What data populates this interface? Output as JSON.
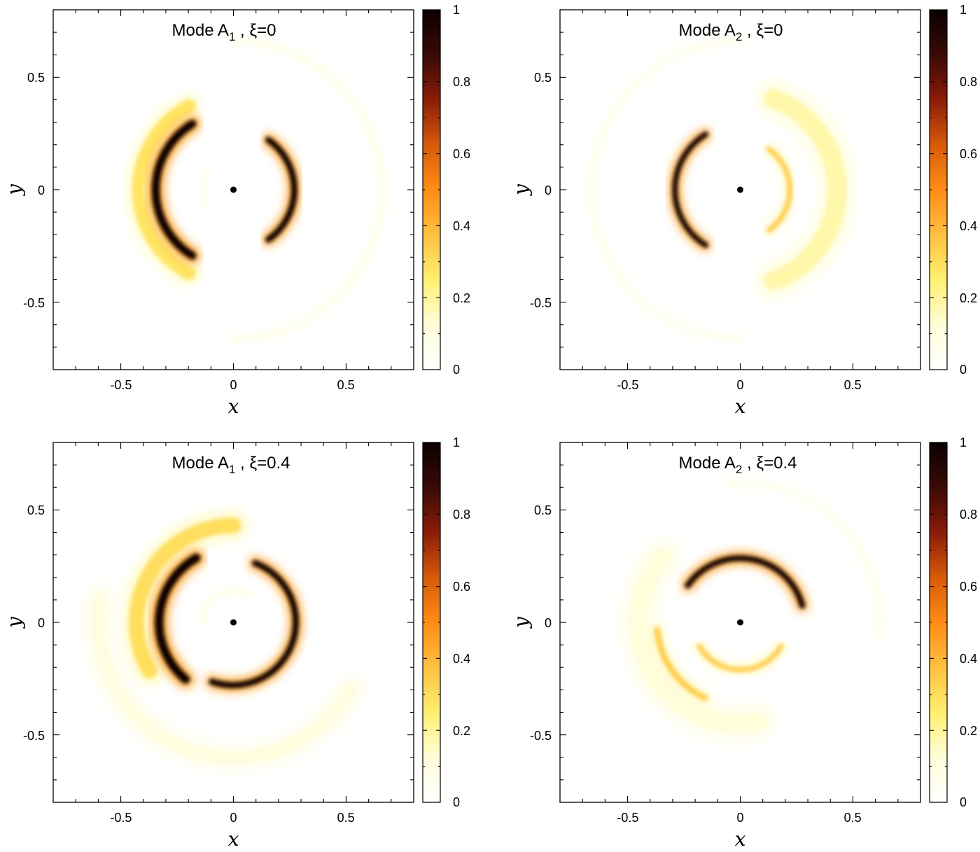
{
  "colormap": {
    "name": "afmhot-reversed",
    "stops": [
      "#ffffff",
      "#fffdd8",
      "#fff070",
      "#ffc040",
      "#ff8c15",
      "#d85a0a",
      "#8a1c08",
      "#3a0a06",
      "#0a0000"
    ],
    "ticks": [
      "0",
      "0.2",
      "0.4",
      "0.6",
      "0.8",
      "1"
    ]
  },
  "axes": {
    "xlabel": "x",
    "ylabel": "y",
    "xlim": [
      -0.8,
      0.8
    ],
    "ylim": [
      -0.8,
      0.8
    ],
    "x_ticks": [
      {
        "value": -0.5,
        "label": "-0.5"
      },
      {
        "value": 0,
        "label": "0"
      },
      {
        "value": 0.5,
        "label": "0.5"
      }
    ],
    "y_ticks": [
      {
        "value": 0.5,
        "label": "0.5"
      },
      {
        "value": 0,
        "label": "0"
      },
      {
        "value": -0.5,
        "label": "-0.5"
      }
    ]
  },
  "chart_data": [
    {
      "type": "heatmap",
      "title_main": "Mode A",
      "title_sub": "1",
      "title_tail": " , ξ=0",
      "title": "Mode A1 , ξ=0",
      "xlabel": "x",
      "ylabel": "y",
      "xlim": [
        -0.8,
        0.8
      ],
      "ylim": [
        -0.8,
        0.8
      ],
      "clim": [
        0,
        1
      ],
      "center_marker": [
        0,
        0
      ],
      "features": [
        {
          "kind": "crescent",
          "r": 0.345,
          "width": 0.042,
          "angle_center_deg": 180,
          "half_span_deg": 58,
          "peak": 1.0
        },
        {
          "kind": "crescent",
          "r": 0.42,
          "width": 0.07,
          "angle_center_deg": 180,
          "half_span_deg": 62,
          "peak": 0.28
        },
        {
          "kind": "crescent",
          "r": 0.27,
          "width": 0.032,
          "angle_center_deg": 0,
          "half_span_deg": 55,
          "peak": 1.0
        },
        {
          "kind": "crescent",
          "r": 0.14,
          "width": 0.02,
          "angle_center_deg": 180,
          "half_span_deg": 40,
          "peak": 0.06
        },
        {
          "kind": "crescent",
          "r": 0.66,
          "width": 0.03,
          "angle_center_deg": 0,
          "half_span_deg": 90,
          "peak": 0.06
        }
      ]
    },
    {
      "type": "heatmap",
      "title_main": "Mode A",
      "title_sub": "2",
      "title_tail": " , ξ=0",
      "title": "Mode A2 , ξ=0",
      "xlabel": "x",
      "ylabel": "y",
      "xlim": [
        -0.8,
        0.8
      ],
      "ylim": [
        -0.8,
        0.8
      ],
      "clim": [
        0,
        1
      ],
      "center_marker": [
        0,
        0
      ],
      "features": [
        {
          "kind": "crescent",
          "r": 0.29,
          "width": 0.028,
          "angle_center_deg": 180,
          "half_span_deg": 58,
          "peak": 1.0
        },
        {
          "kind": "crescent",
          "r": 0.22,
          "width": 0.025,
          "angle_center_deg": 0,
          "half_span_deg": 55,
          "peak": 0.35
        },
        {
          "kind": "crescent",
          "r": 0.43,
          "width": 0.1,
          "angle_center_deg": 0,
          "half_span_deg": 70,
          "peak": 0.18
        },
        {
          "kind": "crescent",
          "r": 0.66,
          "width": 0.03,
          "angle_center_deg": 180,
          "half_span_deg": 90,
          "peak": 0.05
        }
      ]
    },
    {
      "type": "heatmap",
      "title_main": "Mode A",
      "title_sub": "1",
      "title_tail": " , ξ=0.4",
      "title": "Mode A1 , ξ=0.4",
      "xlabel": "x",
      "ylabel": "y",
      "xlim": [
        -0.8,
        0.8
      ],
      "ylim": [
        -0.8,
        0.8
      ],
      "clim": [
        0,
        1
      ],
      "center_marker": [
        0,
        0
      ],
      "features": [
        {
          "kind": "crescent",
          "r": 0.33,
          "width": 0.045,
          "angle_center_deg": 175,
          "half_span_deg": 55,
          "peak": 1.0
        },
        {
          "kind": "crescent",
          "r": 0.43,
          "width": 0.08,
          "angle_center_deg": 150,
          "half_span_deg": 60,
          "peak": 0.3
        },
        {
          "kind": "crescent",
          "r": 0.28,
          "width": 0.032,
          "angle_center_deg": -20,
          "half_span_deg": 90,
          "peak": 1.0
        },
        {
          "kind": "crescent",
          "r": 0.14,
          "width": 0.02,
          "angle_center_deg": 120,
          "half_span_deg": 60,
          "peak": 0.08
        },
        {
          "kind": "crescent",
          "r": 0.6,
          "width": 0.08,
          "angle_center_deg": -110,
          "half_span_deg": 80,
          "peak": 0.1
        }
      ]
    },
    {
      "type": "heatmap",
      "title_main": "Mode A",
      "title_sub": "2",
      "title_tail": " , ξ=0.4",
      "title": "Mode A2 , ξ=0.4",
      "xlabel": "x",
      "ylabel": "y",
      "xlim": [
        -0.8,
        0.8
      ],
      "ylim": [
        -0.8,
        0.8
      ],
      "clim": [
        0,
        1
      ],
      "center_marker": [
        0,
        0
      ],
      "features": [
        {
          "kind": "crescent",
          "r": 0.285,
          "width": 0.03,
          "angle_center_deg": 80,
          "half_span_deg": 65,
          "peak": 1.0
        },
        {
          "kind": "crescent",
          "r": 0.21,
          "width": 0.025,
          "angle_center_deg": -90,
          "half_span_deg": 60,
          "peak": 0.35
        },
        {
          "kind": "crescent",
          "r": 0.37,
          "width": 0.03,
          "angle_center_deg": -145,
          "half_span_deg": 30,
          "peak": 0.35
        },
        {
          "kind": "crescent",
          "r": 0.45,
          "width": 0.1,
          "angle_center_deg": -150,
          "half_span_deg": 70,
          "peak": 0.12
        },
        {
          "kind": "crescent",
          "r": 0.62,
          "width": 0.03,
          "angle_center_deg": 45,
          "half_span_deg": 50,
          "peak": 0.05
        }
      ]
    }
  ]
}
